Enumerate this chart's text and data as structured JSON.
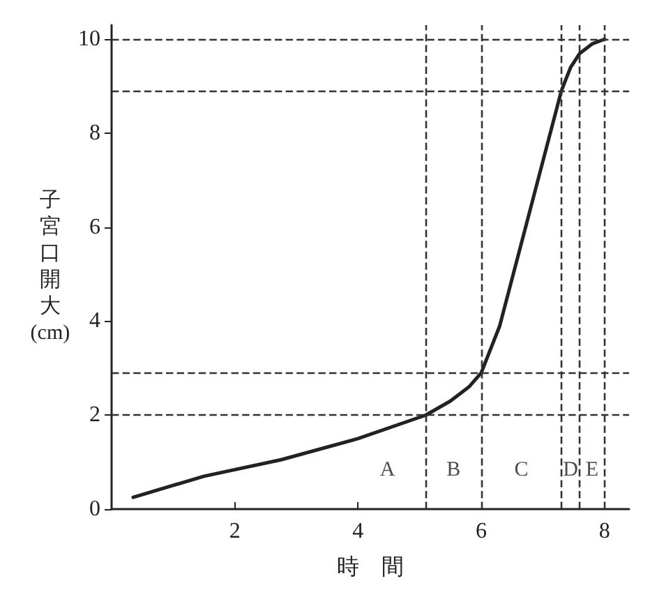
{
  "chart_data": {
    "type": "line",
    "xlabel": "時　間",
    "ylabel": "子宮口開大(cm)",
    "x": [
      0.35,
      1.5,
      2.75,
      4,
      5.1,
      5.5,
      5.8,
      6,
      6.3,
      7.3,
      7.45,
      7.6,
      7.8,
      8
    ],
    "series": [
      {
        "color": "#222222",
        "values": [
          0.25,
          0.7,
          1.05,
          1.5,
          2,
          2.3,
          2.6,
          2.9,
          3.9,
          8.9,
          9.4,
          9.7,
          9.9,
          10
        ]
      }
    ],
    "xlim": [
      0,
      8.4
    ],
    "xticks": [
      2,
      4,
      6,
      8
    ],
    "ylim": [
      0,
      10.3
    ],
    "yticks": [
      0,
      2,
      4,
      6,
      8,
      10
    ],
    "grid": false,
    "marker": "none",
    "line_style": "solid",
    "ref_lines": [
      {
        "axis": "y",
        "value": 2,
        "line_style": "dashed"
      },
      {
        "axis": "y",
        "value": 2.9,
        "line_style": "dashed"
      },
      {
        "axis": "y",
        "value": 8.9,
        "line_style": "dashed"
      },
      {
        "axis": "y",
        "value": 10,
        "line_style": "dashed"
      },
      {
        "axis": "x",
        "value": 5.1,
        "line_style": "dashed"
      },
      {
        "axis": "x",
        "value": 6,
        "line_style": "dashed"
      },
      {
        "axis": "x",
        "value": 7.3,
        "line_style": "dashed"
      },
      {
        "axis": "x",
        "value": 7.6,
        "line_style": "dashed"
      },
      {
        "axis": "x",
        "value": 8,
        "line_style": "dashed"
      }
    ],
    "annotations": [
      "A",
      "B",
      "C",
      "D",
      "E"
    ]
  }
}
